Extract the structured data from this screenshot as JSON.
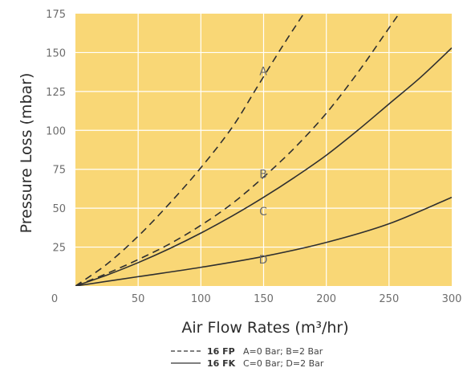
{
  "chart_data": {
    "type": "line",
    "title": "",
    "xlabel": "Air Flow Rates (m³/hr)",
    "ylabel": "Pressure Loss  (mbar)",
    "xlim": [
      0,
      300
    ],
    "ylim": [
      0,
      175
    ],
    "x_ticks": [
      "0",
      "50",
      "100",
      "150",
      "200",
      "250",
      "300"
    ],
    "y_ticks": [
      "25",
      "50",
      "75",
      "100",
      "125",
      "150",
      "175"
    ],
    "grid": true,
    "background_color": "#f9d776",
    "grid_color": "#ffffff",
    "line_color": "#2f2f2f",
    "series": [
      {
        "name": "A",
        "style": "dashed",
        "points": [
          [
            0,
            0
          ],
          [
            25,
            14
          ],
          [
            50,
            32
          ],
          [
            75,
            53
          ],
          [
            100,
            76
          ],
          [
            125,
            102
          ],
          [
            145,
            128
          ],
          [
            165,
            154
          ],
          [
            182,
            175
          ]
        ]
      },
      {
        "name": "B",
        "style": "dashed",
        "points": [
          [
            0,
            0
          ],
          [
            25,
            8
          ],
          [
            50,
            17
          ],
          [
            75,
            27
          ],
          [
            100,
            39
          ],
          [
            125,
            53
          ],
          [
            150,
            70
          ],
          [
            175,
            89
          ],
          [
            200,
            111
          ],
          [
            225,
            137
          ],
          [
            245,
            160
          ],
          [
            258,
            175
          ]
        ]
      },
      {
        "name": "C",
        "style": "solid",
        "points": [
          [
            0,
            0
          ],
          [
            25,
            7
          ],
          [
            50,
            15
          ],
          [
            75,
            24
          ],
          [
            100,
            34
          ],
          [
            125,
            45
          ],
          [
            150,
            57
          ],
          [
            175,
            70
          ],
          [
            200,
            84
          ],
          [
            225,
            100
          ],
          [
            250,
            117
          ],
          [
            275,
            134
          ],
          [
            300,
            153
          ]
        ]
      },
      {
        "name": "D",
        "style": "solid",
        "points": [
          [
            0,
            0
          ],
          [
            50,
            6
          ],
          [
            100,
            12
          ],
          [
            150,
            19
          ],
          [
            200,
            28
          ],
          [
            250,
            40
          ],
          [
            300,
            57
          ]
        ]
      }
    ],
    "curve_label_positions": {
      "A": [
        142,
        138
      ],
      "B": [
        142,
        72
      ],
      "C": [
        142,
        48
      ],
      "D": [
        142,
        17
      ]
    },
    "legend": [
      {
        "style": "dashed",
        "code": "16 FP",
        "text": "A=0 Bar; B=2 Bar"
      },
      {
        "style": "solid",
        "code": "16 FK",
        "text": "C=0 Bar; D=2 Bar"
      }
    ]
  }
}
